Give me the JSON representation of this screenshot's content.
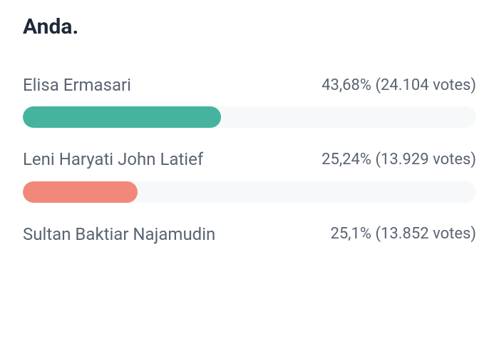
{
  "title": "Anda.",
  "colors": {
    "text_primary": "#1f2937",
    "text_secondary": "#5a6472",
    "track_bg": "#f7f8f9"
  },
  "poll": [
    {
      "name": "Elisa Ermasari",
      "percent_label": "43,68%",
      "votes_label": "(24.104 votes)",
      "bar_width_pct": 43.68,
      "bar_color": "#45b39d",
      "show_bar": true
    },
    {
      "name": "Leni Haryati John Latief",
      "percent_label": "25,24%",
      "votes_label": "(13.929 votes)",
      "bar_width_pct": 25.24,
      "bar_color": "#f1887a",
      "show_bar": true
    },
    {
      "name": "Sultan Baktiar Najamudin",
      "percent_label": "25,1%",
      "votes_label": "(13.852 votes)",
      "bar_width_pct": 25.1,
      "bar_color": "#cccccc",
      "show_bar": false
    }
  ]
}
